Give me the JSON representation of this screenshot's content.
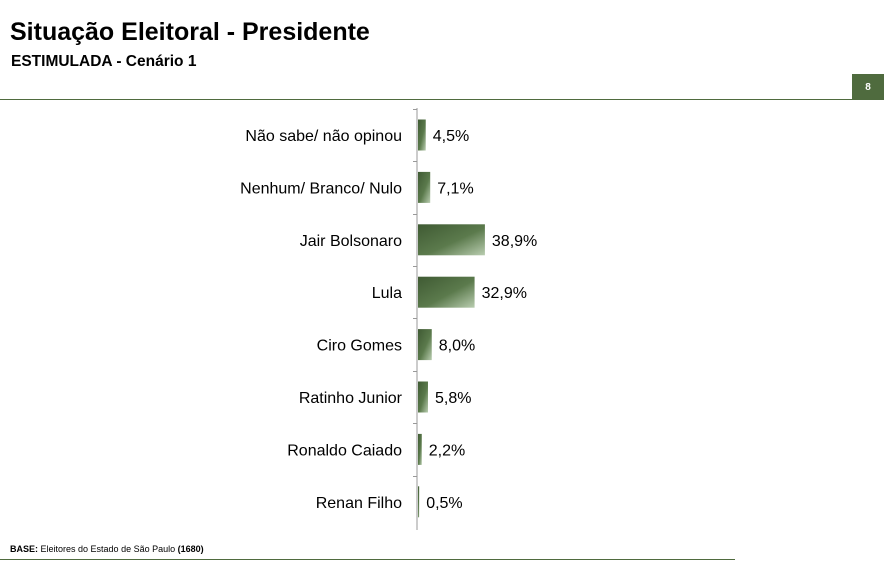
{
  "header": {
    "title": "Situação Eleitoral - Presidente",
    "subtitle": "ESTIMULADA - Cenário 1",
    "page_number": "8"
  },
  "footnote": {
    "label": "BASE:",
    "text": " Eleitores do Estado de São Paulo ",
    "count": "(1680)"
  },
  "colors": {
    "accent": "#4f6b3e",
    "bar_dark": "#3f5a33",
    "bar_light": "#b9cdb0"
  },
  "chart_data": {
    "type": "bar",
    "orientation": "horizontal",
    "categories": [
      "Não sabe/ não opinou",
      "Nenhum/ Branco/ Nulo",
      "Jair Bolsonaro",
      "Lula",
      "Ciro Gomes",
      "Ratinho Junior",
      "Ronaldo Caiado",
      "Renan Filho"
    ],
    "values": [
      4.5,
      7.1,
      38.9,
      32.9,
      8.0,
      5.8,
      2.2,
      0.5
    ],
    "value_labels": [
      "4,5%",
      "7,1%",
      "38,9%",
      "32,9%",
      "8,0%",
      "5,8%",
      "2,2%",
      "0,5%"
    ],
    "unit": "%",
    "xlim": [
      0,
      100
    ],
    "grid": false,
    "legend": "none"
  }
}
